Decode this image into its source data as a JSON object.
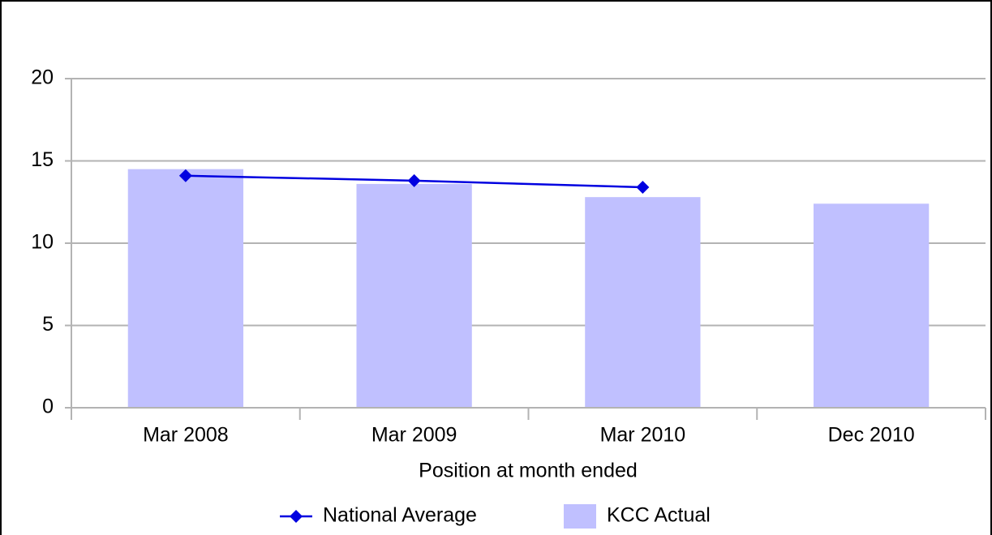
{
  "chart_data": {
    "type": "combo",
    "categories": [
      "Mar 2008",
      "Mar 2009",
      "Mar 2010",
      "Dec 2010"
    ],
    "series": [
      {
        "name": "National Average",
        "type": "line",
        "color": "#0000e0",
        "values": [
          14.1,
          13.8,
          13.4,
          null
        ]
      },
      {
        "name": "KCC Actual",
        "type": "bar",
        "color": "#c0c0ff",
        "values": [
          14.5,
          13.6,
          12.8,
          12.4
        ]
      }
    ],
    "x_label": "Position at month ended",
    "ylim": [
      0,
      20
    ],
    "yticks": [
      0,
      5,
      10,
      15,
      20
    ],
    "grid": true,
    "legend": "bottom"
  }
}
